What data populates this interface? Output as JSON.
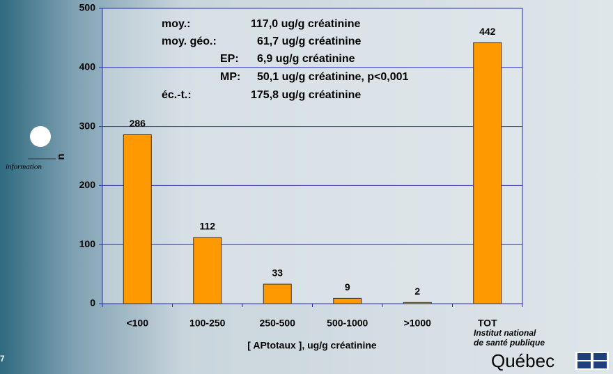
{
  "chart_data": {
    "type": "bar",
    "categories": [
      "<100",
      "100-250",
      "250-500",
      "500-1000",
      ">1000",
      "TOT"
    ],
    "values": [
      286,
      112,
      33,
      9,
      2,
      442
    ],
    "color": "#ff9900",
    "ylim": [
      0,
      500
    ],
    "yticks": [
      0,
      100,
      200,
      300,
      400,
      500
    ],
    "grid": true,
    "y_label": "n",
    "x_label": "[ APtotaux ], ug/g créatinine",
    "annotations": [
      {
        "label": "moy.:",
        "text": "117,0 ug/g créatinine"
      },
      {
        "label": "moy. géo.:",
        "text": "61,7 ug/g créatinine"
      },
      {
        "label": "EP:",
        "text": "6,9 ug/g créatinine"
      },
      {
        "label": "MP:",
        "text": "50,1 ug/g créatinine, p<0,001"
      },
      {
        "label": "éc.-t.:",
        "text": "175,8 ug/g créatinine"
      }
    ]
  },
  "branding": {
    "side_text": "information",
    "slide_number": "7",
    "institute_line1": "Institut national",
    "institute_line2": "de santé publique",
    "province": "Québec"
  }
}
